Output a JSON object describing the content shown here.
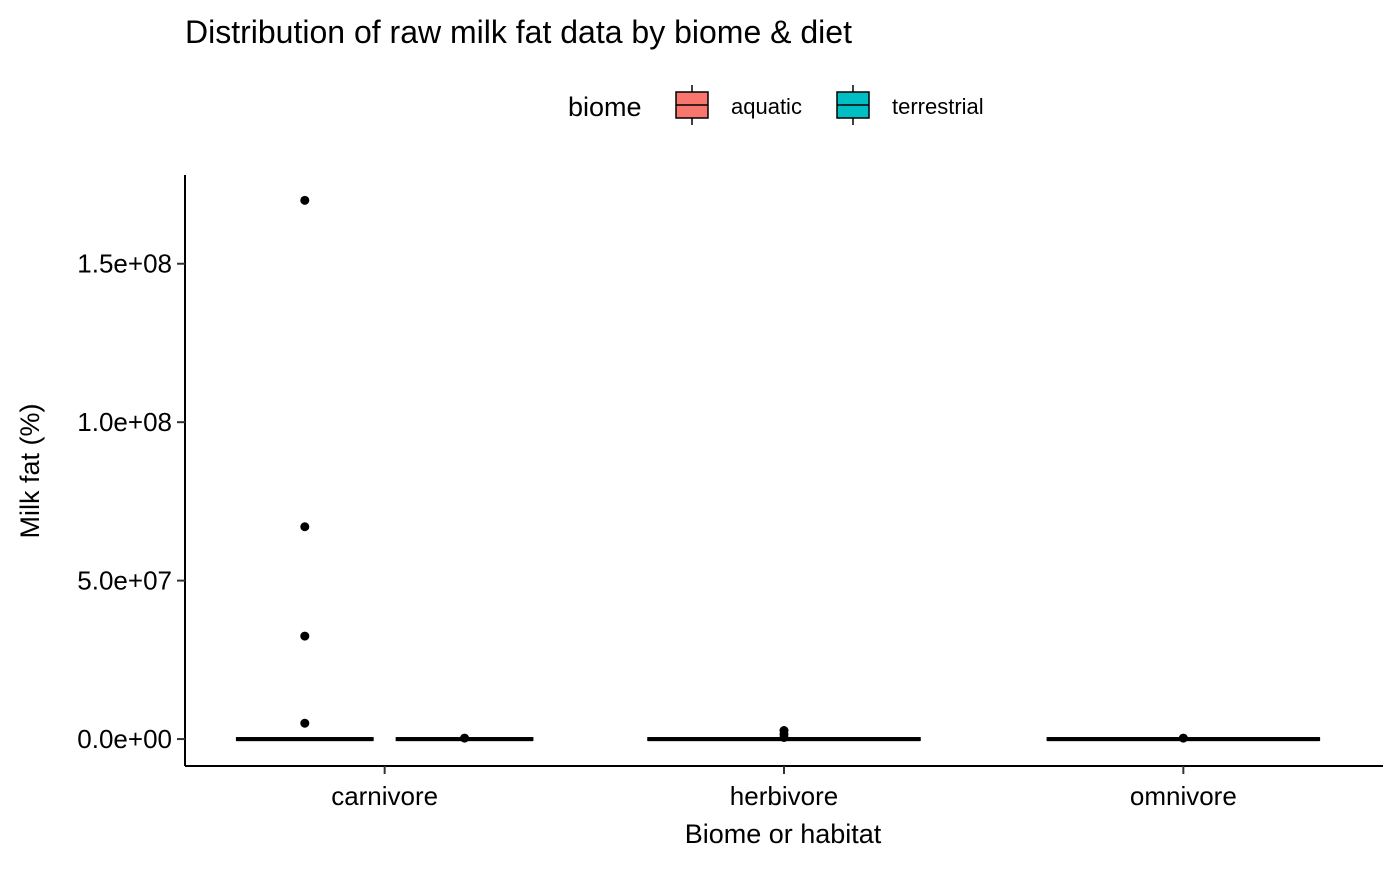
{
  "chart_data": {
    "type": "boxplot",
    "title": "Distribution of raw milk fat data by biome & diet",
    "xlabel": "Biome or habitat",
    "ylabel": "Milk fat (%)",
    "categories": [
      "carnivore",
      "herbivore",
      "omnivore"
    ],
    "y_ticks": [
      {
        "value": 0,
        "label": "0.0e+00"
      },
      {
        "value": 50000000,
        "label": "5.0e+07"
      },
      {
        "value": 100000000,
        "label": "1.0e+08"
      },
      {
        "value": 150000000,
        "label": "1.5e+08"
      }
    ],
    "ylim": [
      -8500000,
      178000000
    ],
    "grid": false,
    "legend": {
      "title": "biome",
      "position": "top",
      "entries": [
        {
          "name": "aquatic",
          "color": "#F8766D"
        },
        {
          "name": "terrestrial",
          "color": "#00BFC4"
        }
      ]
    },
    "series": [
      {
        "name": "aquatic",
        "color": "#F8766D",
        "boxes": [
          {
            "category": "carnivore",
            "q1": 0,
            "median": 0,
            "q3": 0,
            "whisker_low": 0,
            "whisker_high": 0,
            "outliers": [
              170000000,
              67000000,
              32500000,
              5000000
            ]
          }
        ]
      },
      {
        "name": "terrestrial",
        "color": "#00BFC4",
        "boxes": [
          {
            "category": "carnivore",
            "q1": 0,
            "median": 0,
            "q3": 0,
            "whisker_low": 0,
            "whisker_high": 0,
            "outliers": [
              300000
            ]
          },
          {
            "category": "herbivore",
            "q1": 0,
            "median": 0,
            "q3": 0,
            "whisker_low": 0,
            "whisker_high": 0,
            "outliers": [
              2700000,
              1500000,
              500000
            ]
          },
          {
            "category": "omnivore",
            "q1": 0,
            "median": 0,
            "q3": 0,
            "whisker_low": 0,
            "whisker_high": 0,
            "outliers": [
              300000
            ]
          }
        ]
      }
    ]
  }
}
